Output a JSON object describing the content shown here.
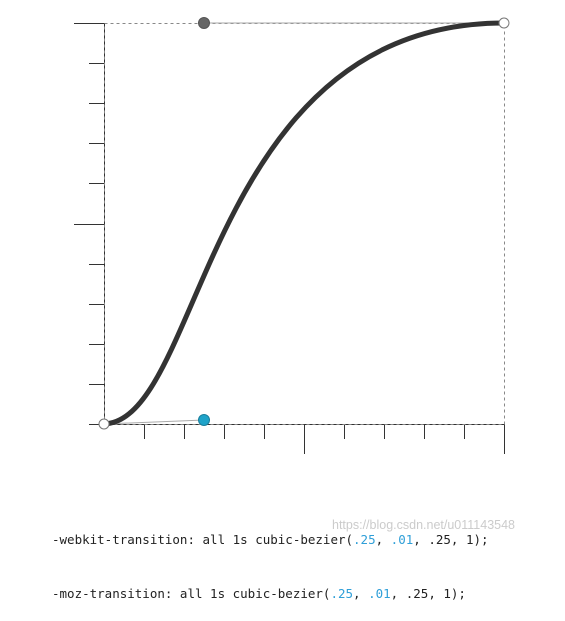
{
  "colors": {
    "curve": "#333333",
    "axis": "#333333",
    "frame_dash": "#888888",
    "handle_line": "#aaaaaa",
    "control_point_1": "#1fa3c9",
    "control_point_2": "#666666",
    "endpoint": "#ffffff",
    "number": "#2f9fd8"
  },
  "bezier": {
    "p1": [
      0.25,
      0.01
    ],
    "p2": [
      0.25,
      1
    ]
  },
  "code": {
    "line1": {
      "prefix": "-webkit-transition: all 1s cubic-bezier(",
      "v1": ".25",
      "sep1": ", ",
      "v2": ".01",
      "sep2": ", ",
      "v3": ".25",
      "sep3": ", ",
      "v4": "1",
      "suffix": ");"
    },
    "line2": {
      "prefix": "-moz-transition: all 1s cubic-bezier(",
      "v1": ".25",
      "sep1": ", ",
      "v2": ".01",
      "sep2": ", ",
      "v3": ".25",
      "sep3": ", ",
      "v4": "1",
      "suffix": ");"
    }
  },
  "watermark": "https://blog.csdn.net/u011143548"
}
